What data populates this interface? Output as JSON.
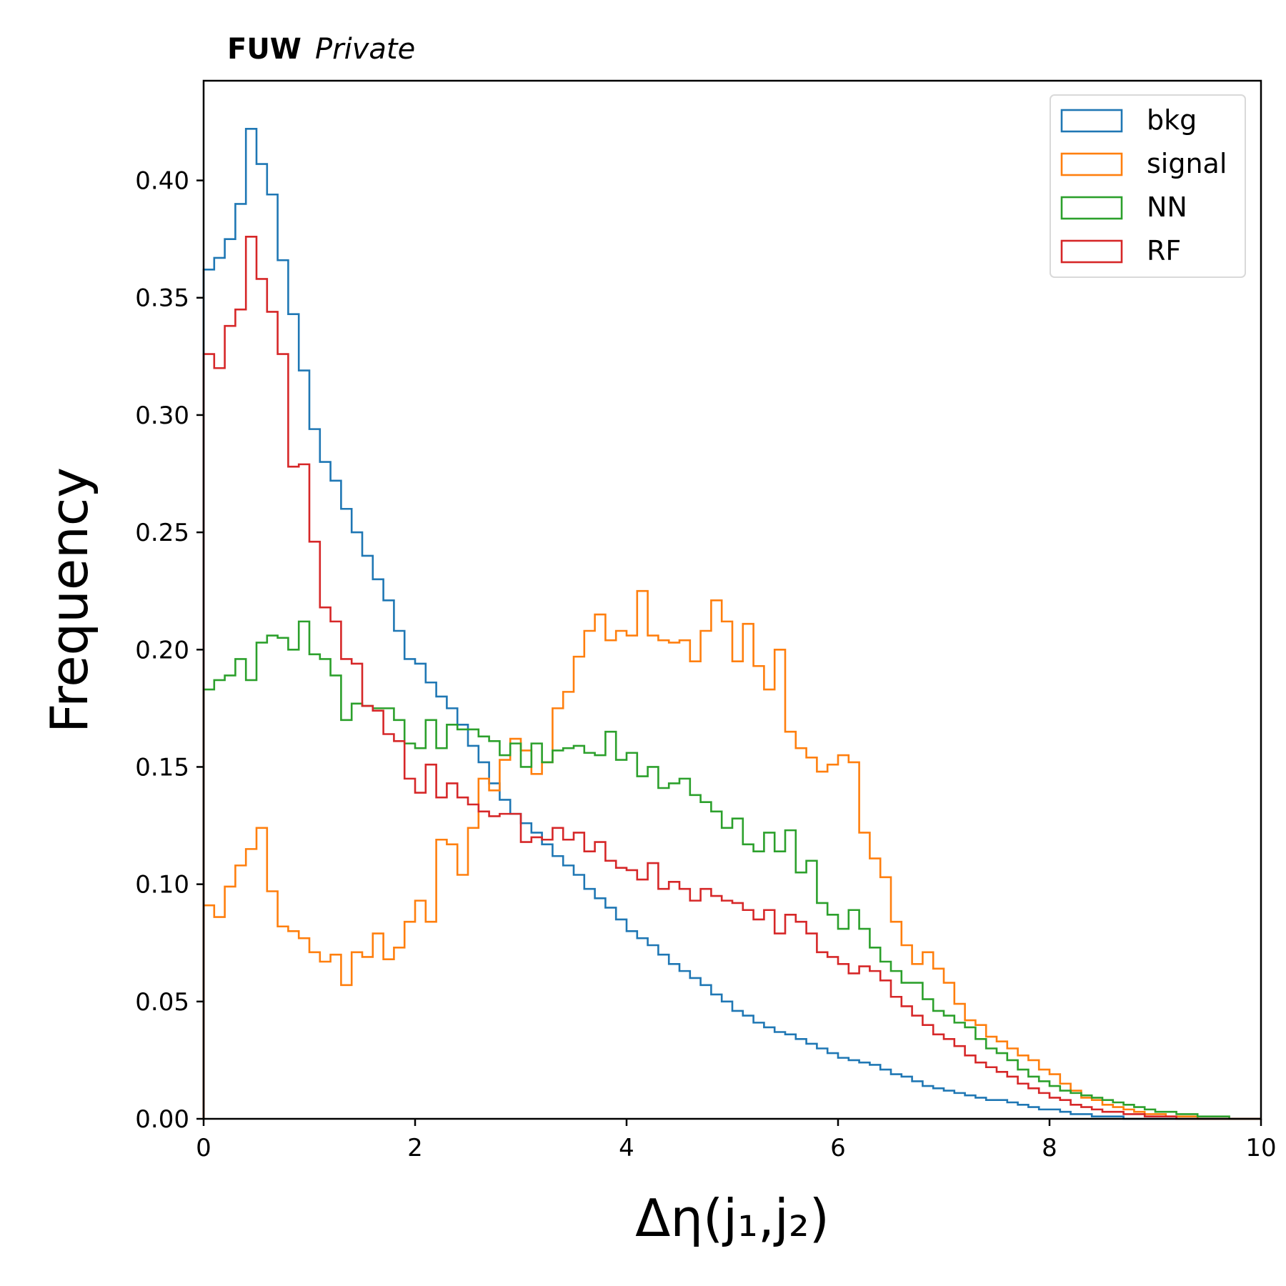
{
  "header": {
    "brand": "FUW",
    "subtitle": "Private"
  },
  "chart_data": {
    "type": "histogram-step",
    "xlabel": "Δη(j₁,j₂)",
    "ylabel": "Frequency",
    "xlim": [
      0,
      10
    ],
    "ylim": [
      0,
      0.4425
    ],
    "xticks": [
      0,
      2,
      4,
      6,
      8,
      10
    ],
    "xtick_labels": [
      "0",
      "2",
      "4",
      "6",
      "8",
      "10"
    ],
    "yticks": [
      0,
      0.05,
      0.1,
      0.15,
      0.2,
      0.25,
      0.3,
      0.35,
      0.4
    ],
    "ytick_labels": [
      "0.00",
      "0.05",
      "0.10",
      "0.15",
      "0.20",
      "0.25",
      "0.30",
      "0.35",
      "0.40"
    ],
    "grid": false,
    "legend_position": "top-right",
    "bin_width": 0.1,
    "series": [
      {
        "name": "bkg",
        "color": "#1f77b4",
        "values": [
          0.362,
          0.367,
          0.375,
          0.39,
          0.422,
          0.407,
          0.394,
          0.366,
          0.343,
          0.319,
          0.294,
          0.28,
          0.272,
          0.26,
          0.25,
          0.24,
          0.23,
          0.221,
          0.208,
          0.196,
          0.194,
          0.186,
          0.18,
          0.175,
          0.168,
          0.159,
          0.152,
          0.143,
          0.136,
          0.13,
          0.126,
          0.122,
          0.117,
          0.112,
          0.108,
          0.104,
          0.098,
          0.094,
          0.09,
          0.085,
          0.08,
          0.077,
          0.074,
          0.07,
          0.066,
          0.063,
          0.06,
          0.057,
          0.053,
          0.05,
          0.046,
          0.044,
          0.041,
          0.039,
          0.037,
          0.036,
          0.034,
          0.032,
          0.03,
          0.028,
          0.026,
          0.025,
          0.024,
          0.023,
          0.021,
          0.019,
          0.018,
          0.016,
          0.014,
          0.013,
          0.012,
          0.011,
          0.01,
          0.009,
          0.008,
          0.008,
          0.007,
          0.006,
          0.005,
          0.004,
          0.004,
          0.003,
          0.002,
          0.002,
          0.001,
          0.001,
          0.001,
          0.0,
          0.0,
          0.0,
          0.0,
          0.0,
          0.0,
          0.0,
          0.0,
          0.0,
          0.0,
          0.0,
          0.0,
          0.0
        ]
      },
      {
        "name": "signal",
        "color": "#ff7f0e",
        "values": [
          0.091,
          0.086,
          0.099,
          0.108,
          0.115,
          0.124,
          0.097,
          0.082,
          0.08,
          0.077,
          0.071,
          0.067,
          0.07,
          0.057,
          0.071,
          0.069,
          0.079,
          0.068,
          0.073,
          0.084,
          0.093,
          0.084,
          0.119,
          0.117,
          0.104,
          0.124,
          0.145,
          0.14,
          0.153,
          0.162,
          0.157,
          0.147,
          0.152,
          0.175,
          0.182,
          0.197,
          0.208,
          0.215,
          0.204,
          0.208,
          0.206,
          0.225,
          0.206,
          0.204,
          0.203,
          0.204,
          0.195,
          0.208,
          0.221,
          0.212,
          0.195,
          0.211,
          0.193,
          0.183,
          0.2,
          0.165,
          0.158,
          0.154,
          0.148,
          0.151,
          0.155,
          0.152,
          0.122,
          0.111,
          0.103,
          0.084,
          0.074,
          0.066,
          0.071,
          0.064,
          0.058,
          0.049,
          0.042,
          0.04,
          0.035,
          0.033,
          0.03,
          0.027,
          0.025,
          0.021,
          0.019,
          0.015,
          0.012,
          0.009,
          0.008,
          0.006,
          0.005,
          0.004,
          0.003,
          0.002,
          0.002,
          0.001,
          0.001,
          0.001,
          0.0,
          0.0,
          0.0,
          0.0,
          0.0,
          0.0
        ]
      },
      {
        "name": "NN",
        "color": "#2ca02c",
        "values": [
          0.183,
          0.187,
          0.189,
          0.196,
          0.187,
          0.203,
          0.206,
          0.205,
          0.2,
          0.212,
          0.198,
          0.196,
          0.189,
          0.17,
          0.177,
          0.176,
          0.175,
          0.175,
          0.17,
          0.16,
          0.158,
          0.17,
          0.158,
          0.168,
          0.166,
          0.166,
          0.163,
          0.161,
          0.155,
          0.16,
          0.15,
          0.16,
          0.152,
          0.157,
          0.158,
          0.159,
          0.156,
          0.155,
          0.165,
          0.153,
          0.156,
          0.146,
          0.15,
          0.141,
          0.143,
          0.145,
          0.138,
          0.135,
          0.131,
          0.124,
          0.128,
          0.117,
          0.114,
          0.122,
          0.114,
          0.123,
          0.105,
          0.11,
          0.092,
          0.087,
          0.081,
          0.089,
          0.081,
          0.073,
          0.067,
          0.063,
          0.058,
          0.058,
          0.051,
          0.046,
          0.044,
          0.041,
          0.039,
          0.034,
          0.03,
          0.028,
          0.025,
          0.021,
          0.018,
          0.016,
          0.014,
          0.012,
          0.011,
          0.01,
          0.009,
          0.008,
          0.007,
          0.006,
          0.005,
          0.004,
          0.003,
          0.003,
          0.002,
          0.002,
          0.001,
          0.001,
          0.001,
          0.0,
          0.0,
          0.0
        ]
      },
      {
        "name": "RF",
        "color": "#d62728",
        "values": [
          0.326,
          0.32,
          0.338,
          0.345,
          0.376,
          0.358,
          0.344,
          0.326,
          0.278,
          0.279,
          0.246,
          0.218,
          0.212,
          0.196,
          0.194,
          0.176,
          0.174,
          0.164,
          0.161,
          0.145,
          0.139,
          0.151,
          0.137,
          0.143,
          0.137,
          0.134,
          0.131,
          0.129,
          0.13,
          0.13,
          0.118,
          0.12,
          0.119,
          0.124,
          0.119,
          0.122,
          0.114,
          0.118,
          0.11,
          0.107,
          0.106,
          0.102,
          0.109,
          0.098,
          0.101,
          0.098,
          0.093,
          0.098,
          0.095,
          0.093,
          0.092,
          0.089,
          0.085,
          0.089,
          0.079,
          0.087,
          0.084,
          0.079,
          0.071,
          0.069,
          0.066,
          0.062,
          0.065,
          0.063,
          0.059,
          0.052,
          0.048,
          0.044,
          0.04,
          0.036,
          0.034,
          0.031,
          0.027,
          0.024,
          0.022,
          0.02,
          0.018,
          0.015,
          0.013,
          0.011,
          0.009,
          0.008,
          0.006,
          0.005,
          0.004,
          0.003,
          0.003,
          0.002,
          0.002,
          0.001,
          0.001,
          0.001,
          0.0,
          0.0,
          0.0,
          0.0,
          0.0,
          0.0,
          0.0,
          0.0
        ]
      }
    ]
  }
}
